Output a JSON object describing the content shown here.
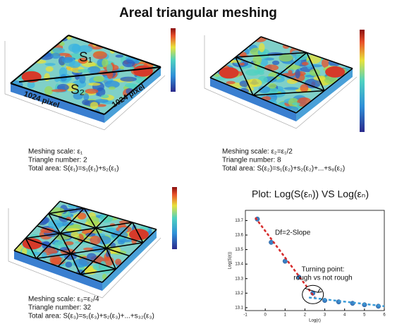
{
  "title": "Areal triangular meshing",
  "panels": [
    {
      "surface_labels": [
        "S₁",
        "S₂",
        "1024 pixel",
        "1024 pixel"
      ],
      "caption": [
        "Meshing scale: ε₁",
        "Triangle number: 2",
        "Total area: S(ε₁)=s₁(ε₁)+s₂(ε₁)"
      ]
    },
    {
      "caption": [
        "Meshing scale: ε₂=ε₁/2",
        "Triangle number: 8",
        "Total area: S(ε₂)=s₁(ε₂)+s₂(ε₂)+...+s₈(ε₂)"
      ]
    },
    {
      "caption": [
        "Meshing scale: ε₃=ε₂/4",
        "Triangle number: 32",
        "Total area: S(ε₃)=s₁(ε₃)+s₂(ε₃)+...+s₃₂(ε₃)"
      ]
    }
  ],
  "chart_data": {
    "type": "scatter",
    "title": "Plot: Log(S(εₙ)) VS Log(εₙ)",
    "xlabel": "Log(ε)",
    "ylabel": "Log(S(ε))",
    "x": [
      -0.4,
      0.3,
      1.0,
      1.7,
      2.4,
      3.0,
      3.7,
      4.4,
      5.0,
      5.7
    ],
    "values": [
      13.71,
      13.55,
      13.42,
      13.31,
      13.2,
      13.15,
      13.14,
      13.13,
      13.12,
      13.11
    ],
    "color": "#3a7fc4",
    "fit_lines": [
      {
        "color": "#d62a2a",
        "x": [
          -0.5,
          2.5
        ],
        "values": [
          13.72,
          13.17
        ]
      },
      {
        "color": "#3a9ad6",
        "x": [
          2.2,
          6
        ],
        "values": [
          13.17,
          13.11
        ]
      }
    ],
    "annotations": [
      "Df=2-Slope",
      "Turning point:",
      "rough vs not rough"
    ],
    "xlim": [
      -1,
      6
    ],
    "ylim": [
      13.08,
      13.77
    ],
    "xticks": [
      -1,
      0,
      1,
      2,
      3,
      4,
      5,
      6
    ],
    "yticks": [
      13.1,
      13.2,
      13.3,
      13.4,
      13.5,
      13.6,
      13.7
    ]
  }
}
